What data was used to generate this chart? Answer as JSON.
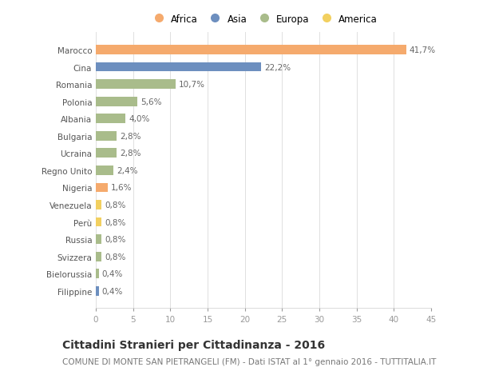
{
  "countries": [
    "Marocco",
    "Cina",
    "Romania",
    "Polonia",
    "Albania",
    "Bulgaria",
    "Ucraina",
    "Regno Unito",
    "Nigeria",
    "Venezuela",
    "Perù",
    "Russia",
    "Svizzera",
    "Bielorussia",
    "Filippine"
  ],
  "values": [
    41.7,
    22.2,
    10.7,
    5.6,
    4.0,
    2.8,
    2.8,
    2.4,
    1.6,
    0.8,
    0.8,
    0.8,
    0.8,
    0.4,
    0.4
  ],
  "labels": [
    "41,7%",
    "22,2%",
    "10,7%",
    "5,6%",
    "4,0%",
    "2,8%",
    "2,8%",
    "2,4%",
    "1,6%",
    "0,8%",
    "0,8%",
    "0,8%",
    "0,8%",
    "0,4%",
    "0,4%"
  ],
  "continents": [
    "Africa",
    "Asia",
    "Europa",
    "Europa",
    "Europa",
    "Europa",
    "Europa",
    "Europa",
    "Africa",
    "America",
    "America",
    "Europa",
    "Europa",
    "Europa",
    "Asia"
  ],
  "colors": {
    "Africa": "#F5AA6D",
    "Asia": "#6D8FBF",
    "Europa": "#A9BC8B",
    "America": "#F2D060"
  },
  "legend_order": [
    "Africa",
    "Asia",
    "Europa",
    "America"
  ],
  "title": "Cittadini Stranieri per Cittadinanza - 2016",
  "subtitle": "COMUNE DI MONTE SAN PIETRANGELI (FM) - Dati ISTAT al 1° gennaio 2016 - TUTTITALIA.IT",
  "xlim": [
    0,
    45
  ],
  "xticks": [
    0,
    5,
    10,
    15,
    20,
    25,
    30,
    35,
    40,
    45
  ],
  "background_color": "#ffffff",
  "grid_color": "#e0e0e0",
  "bar_height": 0.55,
  "label_fontsize": 7.5,
  "title_fontsize": 10,
  "subtitle_fontsize": 7.5,
  "legend_fontsize": 8.5,
  "ytick_fontsize": 7.5,
  "xtick_fontsize": 7.5
}
